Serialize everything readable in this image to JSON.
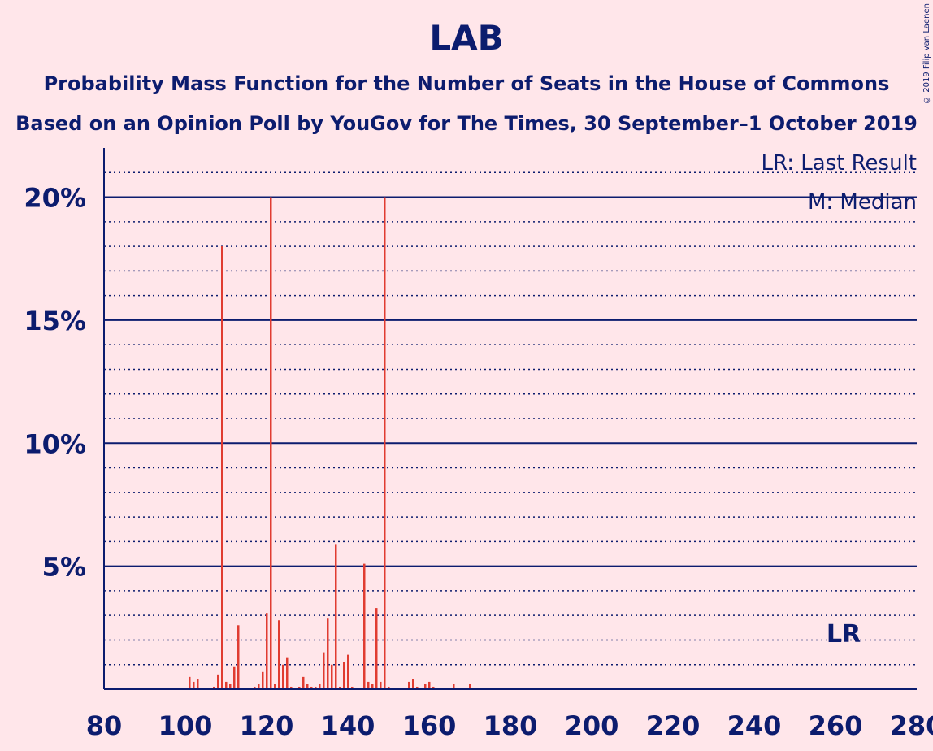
{
  "header": {
    "title": "LAB",
    "subtitle_1": "Probability Mass Function for the Number of Seats in the House of Commons",
    "subtitle_2": "Based on an Opinion Poll by YouGov for The Times, 30 September–1 October 2019",
    "copyright": "© 2019 Filip van Laenen"
  },
  "legend": {
    "last_result": "LR: Last Result",
    "median": "M: Median"
  },
  "colors": {
    "bar": "#e03c31",
    "axis": "#0c1c6e",
    "background": "#ffe6ea"
  },
  "chart_data": {
    "type": "bar",
    "xlim": [
      80,
      280
    ],
    "ylim": [
      0,
      22
    ],
    "x_ticks": [
      "80",
      "100",
      "120",
      "140",
      "160",
      "180",
      "200",
      "220",
      "240",
      "260",
      "280"
    ],
    "y_ticks": [
      {
        "value": 5,
        "label": "5%"
      },
      {
        "value": 10,
        "label": "10%"
      },
      {
        "value": 15,
        "label": "15%"
      },
      {
        "value": 20,
        "label": "20%"
      }
    ],
    "last_result": {
      "seats": 262,
      "label": "LR"
    },
    "seats": [
      86,
      89,
      95,
      101,
      102,
      103,
      106,
      107,
      108,
      109,
      110,
      111,
      112,
      113,
      116,
      117,
      118,
      119,
      120,
      121,
      122,
      123,
      124,
      125,
      126,
      128,
      129,
      130,
      131,
      132,
      133,
      134,
      135,
      136,
      137,
      138,
      139,
      140,
      141,
      142,
      144,
      145,
      146,
      147,
      148,
      149,
      150,
      152,
      155,
      156,
      157,
      158,
      159,
      160,
      161,
      162,
      164,
      166,
      168,
      170
    ],
    "values": [
      0.05,
      0.05,
      0.05,
      0.5,
      0.3,
      0.4,
      0.05,
      0.1,
      0.6,
      18.0,
      0.3,
      0.2,
      0.9,
      2.6,
      0.05,
      0.1,
      0.2,
      0.7,
      3.1,
      20.0,
      0.2,
      2.8,
      1.0,
      1.3,
      0.1,
      0.1,
      0.5,
      0.2,
      0.1,
      0.1,
      0.2,
      1.5,
      2.9,
      1.0,
      5.9,
      0.1,
      1.1,
      1.4,
      0.1,
      0.05,
      5.1,
      0.3,
      0.2,
      3.3,
      0.3,
      20.0,
      0.1,
      0.05,
      0.3,
      0.4,
      0.1,
      0.05,
      0.2,
      0.3,
      0.1,
      0.05,
      0.05,
      0.2,
      0.05,
      0.2
    ]
  }
}
